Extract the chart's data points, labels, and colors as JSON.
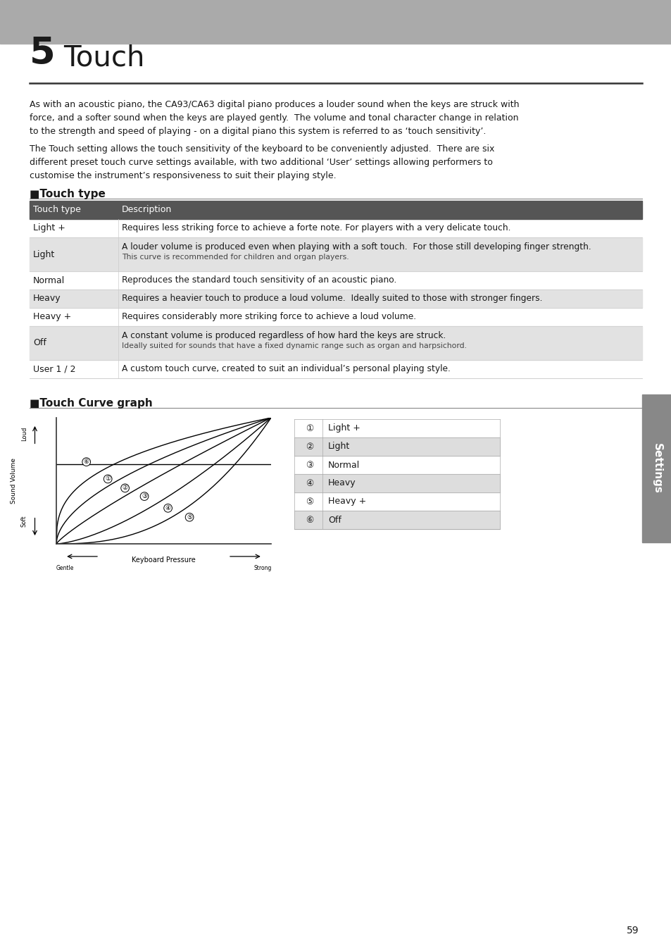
{
  "page_bg": "#ffffff",
  "header_bar_color": "#aaaaaa",
  "chapter_num": "5",
  "chapter_title": "Touch",
  "para1_line1": "As with an acoustic piano, the CA93/CA63 digital piano produces a louder sound when the keys are struck with",
  "para1_line2": "force, and a softer sound when the keys are played gently.  The volume and tonal character change in relation",
  "para1_line3": "to the strength and speed of playing - on a digital piano this system is referred to as ‘touch sensitivity’.",
  "para2_line1": "The Touch setting allows the touch sensitivity of the keyboard to be conveniently adjusted.  There are six",
  "para2_line2": "different preset touch curve settings available, with two additional ‘User’ settings allowing performers to",
  "para2_line3": "customise the instrument’s responsiveness to suit their playing style.",
  "section1_title": "■Touch type",
  "table_header_bg": "#555555",
  "table_rows": [
    [
      "Light +",
      "Requires less striking force to achieve a forte note. For players with a very delicate touch.",
      false,
      false
    ],
    [
      "Light",
      "A louder volume is produced even when playing with a soft touch.  For those still developing finger strength.",
      true,
      true
    ],
    [
      "Light",
      "This curve is recommended for children and organ players.",
      true,
      false
    ],
    [
      "Normal",
      "Reproduces the standard touch sensitivity of an acoustic piano.",
      false,
      false
    ],
    [
      "Heavy",
      "Requires a heavier touch to produce a loud volume.  Ideally suited to those with stronger fingers.",
      true,
      false
    ],
    [
      "Heavy +",
      "Requires considerably more striking force to achieve a loud volume.",
      false,
      false
    ],
    [
      "Off",
      "A constant volume is produced regardless of how hard the keys are struck.",
      true,
      true
    ],
    [
      "Off",
      "Ideally suited for sounds that have a fixed dynamic range such as organ and harpsichord.",
      true,
      false
    ],
    [
      "User 1 / 2",
      "A custom touch curve, created to suit an individual’s personal playing style.",
      false,
      false
    ]
  ],
  "section2_title": "■Touch Curve graph",
  "legend_items": [
    [
      "①",
      "Light +",
      false
    ],
    [
      "②",
      "Light",
      true
    ],
    [
      "③",
      "Normal",
      false
    ],
    [
      "④",
      "Heavy",
      true
    ],
    [
      "⑤",
      "Heavy +",
      false
    ],
    [
      "⑥",
      "Off",
      true
    ]
  ],
  "sidebar_text": "Settings",
  "page_number": "59"
}
